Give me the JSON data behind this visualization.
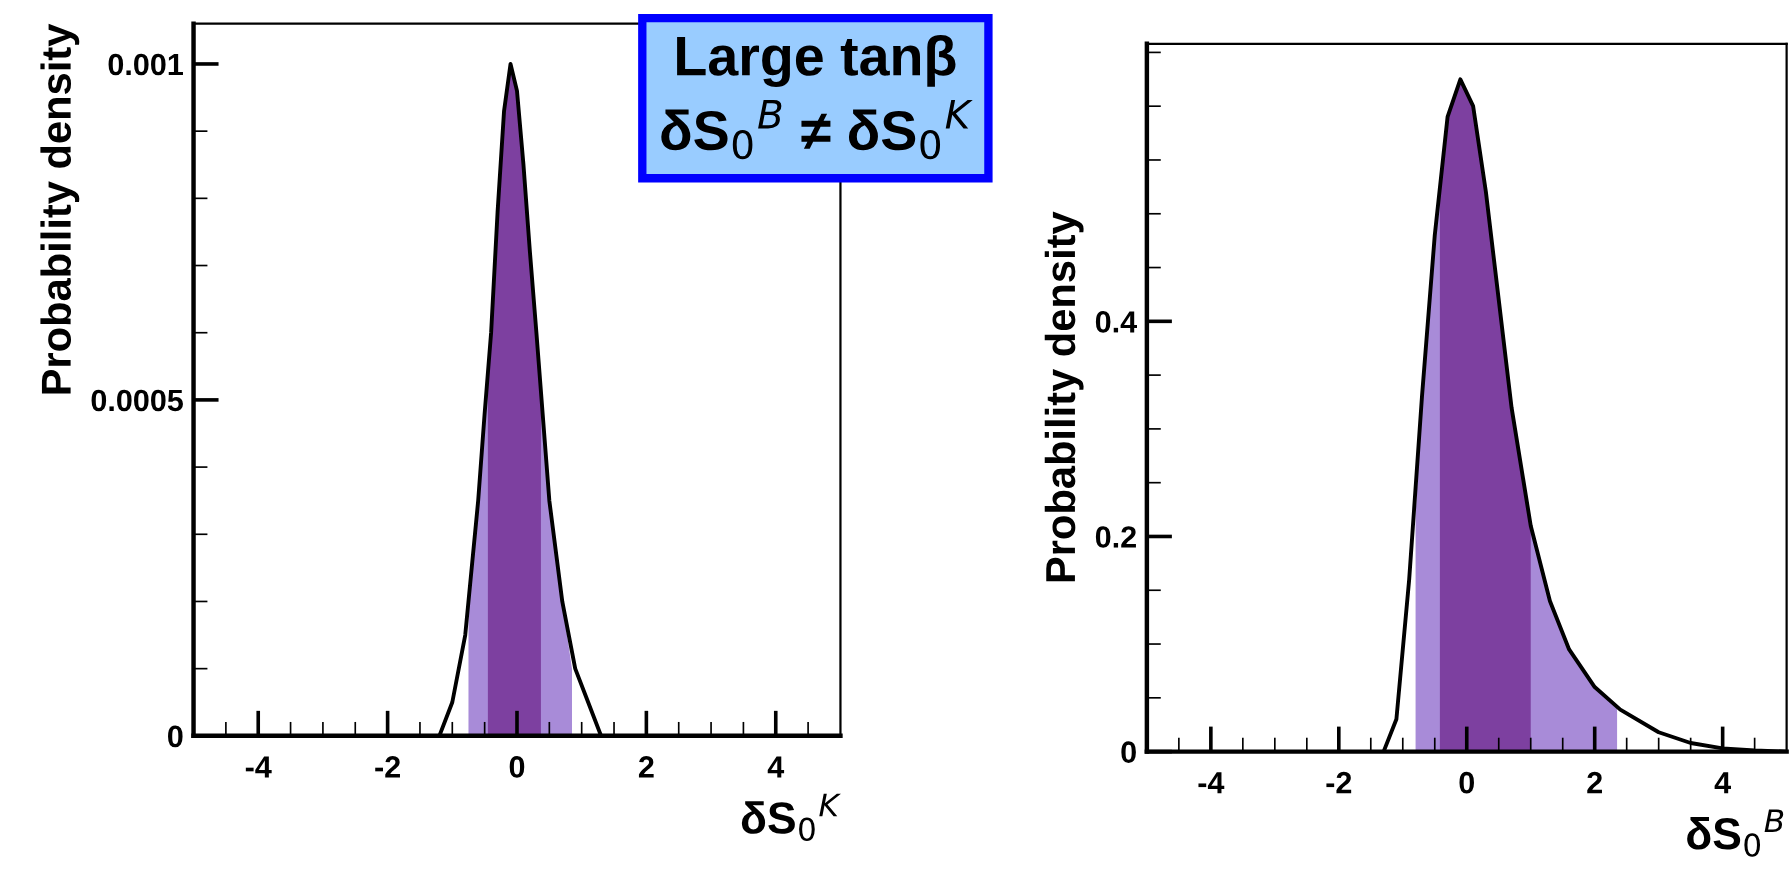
{
  "chart_data": [
    {
      "type": "line",
      "ylabel": "Probability density",
      "xlabel": "δS$_{0}$$^{K}$",
      "annotations": [
        "Large tanβ",
        "δS$_{0}$$^{B}$ ≠ δS$_{0}$$^{K}$"
      ],
      "x": [
        -1.4,
        -1.2,
        -1.0,
        -0.8,
        -0.6,
        -0.5,
        -0.4,
        -0.3,
        -0.2,
        -0.1,
        0.0,
        0.1,
        0.2,
        0.3,
        0.5,
        0.7,
        0.9,
        1.1,
        1.3,
        1.5
      ],
      "series": [
        {
          "type": "area",
          "color": "#a88bd8",
          "x": [
            -0.75,
            -0.6,
            -0.5,
            -0.4,
            -0.3,
            -0.2,
            -0.1,
            0.0,
            0.1,
            0.2,
            0.3,
            0.5,
            0.7,
            0.85
          ],
          "values": [
            0.0002,
            0.00035,
            0.00048,
            0.0006,
            0.00078,
            0.00093,
            0.001,
            0.00096,
            0.00085,
            0.00072,
            0.0006,
            0.00035,
            0.0002,
            0.0001
          ]
        },
        {
          "type": "area",
          "color": "#7d40a0",
          "x": [
            -0.45,
            -0.4,
            -0.3,
            -0.2,
            -0.1,
            0.0,
            0.1,
            0.2,
            0.3,
            0.37
          ],
          "values": [
            0.00055,
            0.0006,
            0.00078,
            0.00093,
            0.001,
            0.00096,
            0.00085,
            0.00072,
            0.0006,
            0.0005
          ]
        },
        {
          "color": "#000000",
          "values": [
            0,
            0,
            5e-05,
            0.00015,
            0.00035,
            0.00048,
            0.0006,
            0.00078,
            0.00093,
            0.001,
            0.00096,
            0.00085,
            0.00072,
            0.0006,
            0.00035,
            0.0002,
            0.0001,
            5e-05,
            0,
            0
          ]
        }
      ],
      "xlim": [
        -5,
        5
      ],
      "ylim": [
        0,
        0.00106
      ],
      "xticks": [
        {
          "value": -4,
          "label": "-4"
        },
        {
          "value": -2,
          "label": "-2"
        },
        0,
        2,
        4,
        {
          "value": -4.5,
          "label": null
        },
        {
          "value": -3.5,
          "label": null
        },
        {
          "value": -3,
          "label": null
        },
        {
          "value": -2.5,
          "label": null
        },
        {
          "value": -1.5,
          "label": null
        },
        {
          "value": -1,
          "label": null
        },
        {
          "value": -0.5,
          "label": null
        },
        {
          "value": 0.5,
          "label": null
        },
        {
          "value": 1,
          "label": null
        },
        {
          "value": 1.5,
          "label": null
        },
        {
          "value": 2.5,
          "label": null
        },
        {
          "value": 3,
          "label": null
        },
        {
          "value": 3.5,
          "label": null
        },
        {
          "value": 4.5,
          "label": null
        }
      ],
      "yticks": [
        0,
        0.0005,
        0.001,
        {
          "value": 0.0001,
          "label": null
        },
        {
          "value": 0.0002,
          "label": null
        },
        {
          "value": 0.0003,
          "label": null
        },
        {
          "value": 0.0004,
          "label": null
        },
        {
          "value": 0.0006,
          "label": null
        },
        {
          "value": 0.0007,
          "label": null
        },
        {
          "value": 0.0008,
          "label": null
        },
        {
          "value": 0.0009,
          "label": null
        }
      ]
    },
    {
      "type": "line",
      "ylabel": "Probability density",
      "xlabel": "δS$_{0}$$^{B}$",
      "x": [
        -1.3,
        -1.1,
        -0.9,
        -0.7,
        -0.5,
        -0.3,
        -0.1,
        0.1,
        0.3,
        0.5,
        0.7,
        1.0,
        1.3,
        1.6,
        2.0,
        2.4,
        3.0,
        3.5,
        4.0,
        4.5,
        5.0
      ],
      "series": [
        {
          "type": "area",
          "color": "#a88bd8",
          "x": [
            -0.8,
            -0.7,
            -0.5,
            -0.3,
            -0.1,
            0.1,
            0.3,
            0.5,
            0.7,
            1.0,
            1.3,
            1.6,
            2.0,
            2.35
          ],
          "values": [
            0.22,
            0.33,
            0.48,
            0.59,
            0.625,
            0.6,
            0.52,
            0.42,
            0.32,
            0.21,
            0.14,
            0.095,
            0.06,
            0.04
          ]
        },
        {
          "type": "area",
          "color": "#7d40a0",
          "x": [
            -0.42,
            -0.3,
            -0.1,
            0.1,
            0.3,
            0.5,
            0.7,
            1.0
          ],
          "values": [
            0.53,
            0.59,
            0.625,
            0.6,
            0.52,
            0.42,
            0.32,
            0.21
          ]
        },
        {
          "color": "#000000",
          "values": [
            0,
            0.03,
            0.16,
            0.33,
            0.48,
            0.59,
            0.625,
            0.6,
            0.52,
            0.42,
            0.32,
            0.21,
            0.14,
            0.095,
            0.06,
            0.039,
            0.018,
            0.008,
            0.003,
            0.001,
            0
          ]
        }
      ],
      "xlim": [
        -5,
        5
      ],
      "ylim": [
        0,
        0.658
      ],
      "xticks": [
        {
          "value": -4,
          "label": "-4"
        },
        {
          "value": -2,
          "label": "-2"
        },
        0,
        2,
        4,
        {
          "value": -4.5,
          "label": null
        },
        {
          "value": -3.5,
          "label": null
        },
        {
          "value": -3,
          "label": null
        },
        {
          "value": -2.5,
          "label": null
        },
        {
          "value": -1.5,
          "label": null
        },
        {
          "value": -1,
          "label": null
        },
        {
          "value": -0.5,
          "label": null
        },
        {
          "value": 0.5,
          "label": null
        },
        {
          "value": 1,
          "label": null
        },
        {
          "value": 1.5,
          "label": null
        },
        {
          "value": 2.5,
          "label": null
        },
        {
          "value": 3,
          "label": null
        },
        {
          "value": 3.5,
          "label": null
        },
        {
          "value": 4.5,
          "label": null
        }
      ],
      "yticks": [
        0,
        0.2,
        0.4,
        {
          "value": 0.05,
          "label": null
        },
        {
          "value": 0.1,
          "label": null
        },
        {
          "value": 0.15,
          "label": null
        },
        {
          "value": 0.25,
          "label": null
        },
        {
          "value": 0.3,
          "label": null
        },
        {
          "value": 0.35,
          "label": null
        },
        {
          "value": 0.45,
          "label": null
        },
        {
          "value": 0.5,
          "label": null
        },
        {
          "value": 0.55,
          "label": null
        },
        {
          "value": 0.6,
          "label": null
        },
        {
          "value": 0.65,
          "label": null
        }
      ]
    }
  ]
}
